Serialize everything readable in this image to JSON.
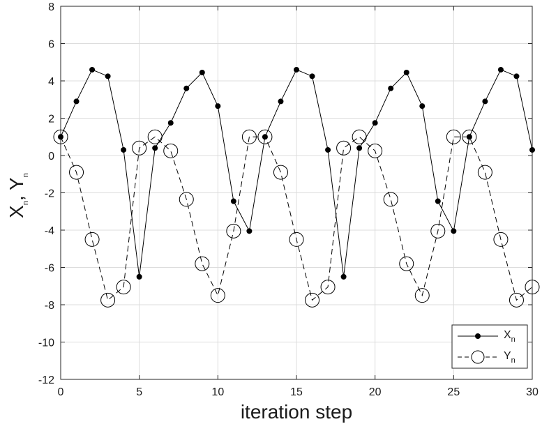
{
  "chart_data": {
    "type": "line",
    "xlabel": "iteration step",
    "ylabel": {
      "main1": "X",
      "sub1": "n",
      "sep": ", ",
      "main2": "Y",
      "sub2": "n"
    },
    "xlim": [
      0,
      30
    ],
    "ylim": [
      -12,
      8
    ],
    "xticks": [
      0,
      5,
      10,
      15,
      20,
      25,
      30
    ],
    "yticks": [
      -12,
      -10,
      -8,
      -6,
      -4,
      -2,
      0,
      2,
      4,
      6,
      8
    ],
    "grid": true,
    "legend_position": "bottom-right",
    "x": [
      0,
      1,
      2,
      3,
      4,
      5,
      6,
      7,
      8,
      9,
      10,
      11,
      12,
      13,
      14,
      15,
      16,
      17,
      18,
      19,
      20,
      21,
      22,
      23,
      24,
      25,
      26,
      27,
      28,
      29,
      30
    ],
    "series": [
      {
        "name": "X",
        "name_sub": "n",
        "line_style": "solid",
        "marker": "filled-dot",
        "color": "#000000",
        "values": [
          1.0,
          2.9,
          4.6,
          4.25,
          0.3,
          -6.5,
          0.4,
          1.75,
          3.6,
          4.45,
          2.65,
          -2.45,
          -4.05,
          1.0,
          2.9,
          4.6,
          4.25,
          0.3,
          -6.5,
          0.4,
          1.75,
          3.6,
          4.45,
          2.65,
          -2.45,
          -4.05,
          1.0,
          2.9,
          4.6,
          4.25,
          0.3
        ]
      },
      {
        "name": "Y",
        "name_sub": "n",
        "line_style": "dashed",
        "marker": "open-circle",
        "color": "#000000",
        "values": [
          1.0,
          -0.9,
          -4.5,
          -7.75,
          -7.05,
          0.4,
          1.0,
          0.25,
          -2.35,
          -5.8,
          -7.5,
          -4.05,
          1.0,
          1.0,
          -0.9,
          -4.5,
          -7.75,
          -7.05,
          0.4,
          1.0,
          0.25,
          -2.35,
          -5.8,
          -7.5,
          -4.05,
          1.0,
          1.0,
          -0.9,
          -4.5,
          -7.75,
          -7.05
        ]
      }
    ]
  }
}
